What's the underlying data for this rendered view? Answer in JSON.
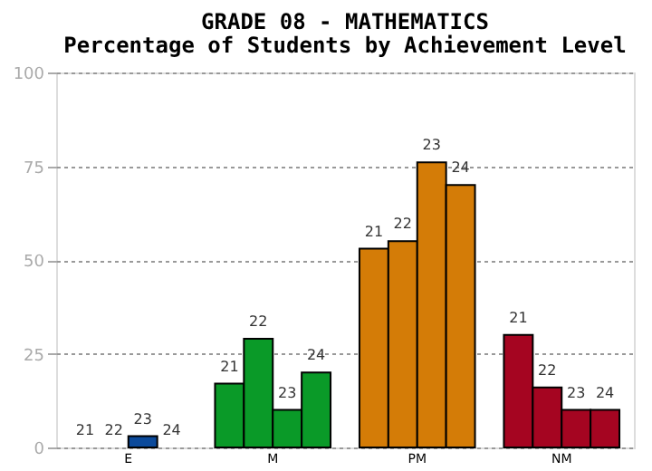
{
  "chart_data": {
    "type": "bar",
    "title": "GRADE 08 - MATHEMATICS",
    "subtitle": "Percentage of Students by Achievement Level",
    "categories": [
      "E",
      "M",
      "PM",
      "NM"
    ],
    "series": [
      {
        "name": "21",
        "colors": [
          "#0b4a9b",
          "#0a9a28",
          "#d47c07",
          "#a50521"
        ],
        "values": [
          0,
          17,
          53,
          30
        ]
      },
      {
        "name": "22",
        "colors": [
          "#0b4a9b",
          "#0a9a28",
          "#d47c07",
          "#a50521"
        ],
        "values": [
          0,
          29,
          55,
          16
        ]
      },
      {
        "name": "23",
        "colors": [
          "#0b4a9b",
          "#0a9a28",
          "#d47c07",
          "#a50521"
        ],
        "values": [
          3,
          10,
          76,
          10
        ]
      },
      {
        "name": "24",
        "colors": [
          "#0b4a9b",
          "#0a9a28",
          "#d47c07",
          "#a50521"
        ],
        "values": [
          0,
          20,
          70,
          10
        ]
      }
    ],
    "ylim": [
      0,
      100
    ],
    "yticks": [
      0,
      25,
      50,
      75,
      100
    ],
    "grid": "y",
    "legend": false
  }
}
